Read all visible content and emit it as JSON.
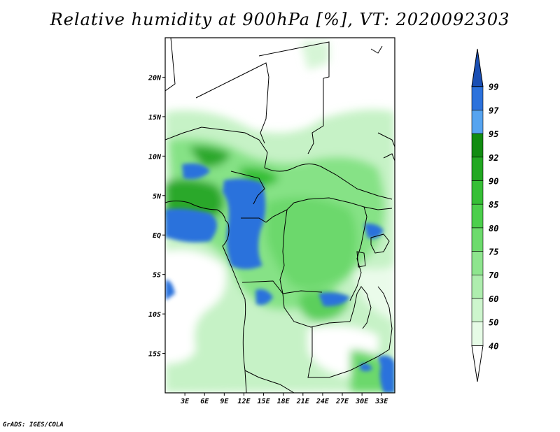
{
  "title": "Relative humidity at 900hPa [%], VT: 2020092303",
  "footer": "GrADS: IGES/COLA",
  "map": {
    "lat_ticks": [
      {
        "label": "20N",
        "lat": 20
      },
      {
        "label": "15N",
        "lat": 15
      },
      {
        "label": "10N",
        "lat": 10
      },
      {
        "label": "5N",
        "lat": 5
      },
      {
        "label": "EQ",
        "lat": 0
      },
      {
        "label": "5S",
        "lat": -5
      },
      {
        "label": "10S",
        "lat": -10
      },
      {
        "label": "15S",
        "lat": -15
      }
    ],
    "lon_ticks": [
      {
        "label": "3E",
        "lon": 3
      },
      {
        "label": "6E",
        "lon": 6
      },
      {
        "label": "9E",
        "lon": 9
      },
      {
        "label": "12E",
        "lon": 12
      },
      {
        "label": "15E",
        "lon": 15
      },
      {
        "label": "18E",
        "lon": 18
      },
      {
        "label": "21E",
        "lon": 21
      },
      {
        "label": "24E",
        "lon": 24
      },
      {
        "label": "27E",
        "lon": 27
      },
      {
        "label": "30E",
        "lon": 30
      },
      {
        "label": "33E",
        "lon": 33
      }
    ],
    "lon_range": [
      0,
      35
    ],
    "lat_range": [
      -20,
      25
    ]
  },
  "colorbar": {
    "levels": [
      "40",
      "50",
      "60",
      "70",
      "75",
      "80",
      "85",
      "90",
      "92",
      "95",
      "97",
      "99"
    ],
    "colors": [
      "#ffffff",
      "#e6fbe6",
      "#cdf5cd",
      "#aeedae",
      "#8ee58e",
      "#6cdb6c",
      "#4ccf4c",
      "#36bf36",
      "#22a822",
      "#118c11",
      "#56a4f0",
      "#2c72dc",
      "#1a4fb4"
    ]
  }
}
